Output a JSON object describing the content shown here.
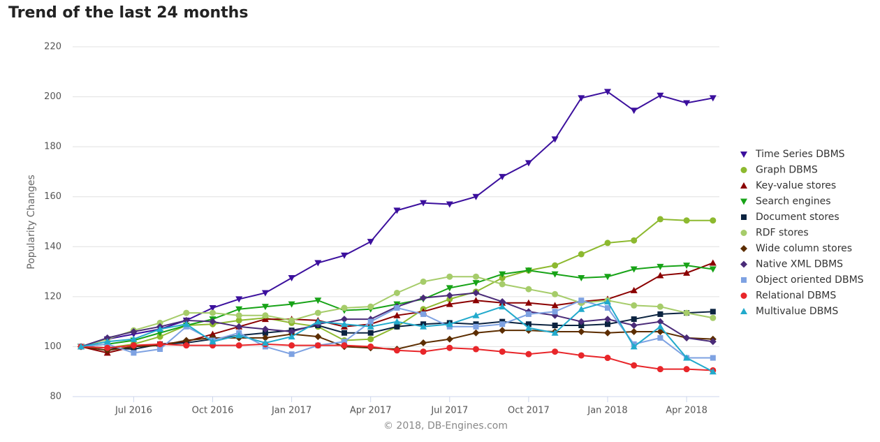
{
  "chart_data": {
    "type": "line",
    "title": "Trend of the last 24 months",
    "y_label": "Popularity Changes",
    "credits": "© 2018, DB-Engines.com",
    "categories": [
      null,
      null,
      "Jul 2016",
      null,
      null,
      "Oct 2016",
      null,
      null,
      "Jan 2017",
      null,
      null,
      "Apr 2017",
      null,
      null,
      "Jul 2017",
      null,
      null,
      "Oct 2017",
      null,
      null,
      "Jan 2018",
      null,
      null,
      "Apr 2018",
      null
    ],
    "ylim": [
      80,
      220
    ],
    "yticks": [
      80,
      100,
      120,
      140,
      160,
      180,
      200,
      220
    ],
    "grid": true,
    "legend": "right",
    "series": [
      {
        "name": "Time Series DBMS",
        "color": "#3b0f9d",
        "marker": "triangle-down",
        "values": [
          100,
          103,
          105,
          107,
          110.5,
          115.5,
          119,
          121.5,
          127.5,
          133.5,
          136.5,
          142,
          154.5,
          157.5,
          157,
          160,
          168,
          173.5,
          183,
          199.5,
          202,
          194.5,
          200.5,
          197.5,
          199.5
        ]
      },
      {
        "name": "Graph DBMS",
        "color": "#8db92f",
        "marker": "circle",
        "values": [
          100,
          99.5,
          101,
          104,
          108.5,
          109,
          110.5,
          111.5,
          109.5,
          108,
          102.5,
          103,
          108,
          115,
          119,
          122,
          127.5,
          130.5,
          132.5,
          137,
          141.5,
          142.5,
          151,
          150.5,
          150.5
        ]
      },
      {
        "name": "Key-value stores",
        "color": "#8b0000",
        "marker": "triangle",
        "values": [
          100,
          97.5,
          100,
          101,
          102,
          105,
          108,
          111,
          111,
          110.5,
          108,
          109,
          112.5,
          114,
          117,
          118.5,
          117.5,
          117.5,
          116.5,
          118,
          119,
          122.5,
          128.5,
          129.5,
          133.5
        ]
      },
      {
        "name": "Search engines",
        "color": "#17a317",
        "marker": "triangle-down",
        "values": [
          100,
          101,
          102.5,
          105.5,
          108.5,
          111,
          115,
          116,
          117,
          118.5,
          114.5,
          115,
          117,
          119,
          123.5,
          125.5,
          129,
          130.5,
          129,
          127.5,
          128,
          131,
          132,
          132.5,
          131
        ]
      },
      {
        "name": "Document stores",
        "color": "#0b2340",
        "marker": "square",
        "values": [
          100,
          99.5,
          99,
          101,
          101.5,
          103,
          104.5,
          105.5,
          106.5,
          108.5,
          105.5,
          105.5,
          108,
          109,
          109.5,
          109,
          110,
          109,
          108.5,
          108.5,
          109,
          111,
          113,
          113.5,
          114
        ]
      },
      {
        "name": "RDF stores",
        "color": "#a6cc6a",
        "marker": "circle",
        "values": [
          100,
          103,
          106.5,
          109.5,
          113.5,
          113.5,
          112.5,
          112.5,
          110.5,
          113.5,
          115.5,
          116,
          121.5,
          126,
          128,
          128,
          125,
          123,
          121,
          117.5,
          118.5,
          116.5,
          116,
          113.5,
          111.5
        ]
      },
      {
        "name": "Wide column stores",
        "color": "#5c2d00",
        "marker": "diamond",
        "values": [
          100,
          98.5,
          100,
          100.5,
          102.5,
          103.5,
          103.5,
          103.5,
          105,
          104,
          100,
          99.5,
          99,
          101.5,
          103,
          105.5,
          106.5,
          106.5,
          106,
          106,
          105.5,
          106,
          106,
          103.5,
          103
        ]
      },
      {
        "name": "Native XML DBMS",
        "color": "#4a2b78",
        "marker": "diamond",
        "values": [
          100,
          103.5,
          106,
          108,
          110.5,
          110,
          108,
          107,
          106,
          109,
          111,
          111,
          116,
          119.5,
          120.5,
          121.5,
          118,
          114,
          112.5,
          110,
          111,
          108.5,
          110,
          103.5,
          102
        ]
      },
      {
        "name": "Object oriented DBMS",
        "color": "#7ea2e2",
        "marker": "square",
        "values": [
          100,
          101,
          97.5,
          99,
          108,
          102.5,
          105.5,
          100,
          97,
          100.5,
          102,
          110,
          115.5,
          113,
          108,
          108,
          109,
          113,
          114,
          118.5,
          115.5,
          101,
          103.5,
          95.5,
          95.5
        ]
      },
      {
        "name": "Relational DBMS",
        "color": "#e8262a",
        "marker": "circle",
        "values": [
          100,
          99.5,
          100.5,
          101,
          100.5,
          100.5,
          100.5,
          101,
          100.5,
          100.5,
          100.5,
          100,
          98.5,
          98,
          99.5,
          99,
          98,
          97,
          98,
          96.5,
          95.5,
          92.5,
          91,
          91,
          90.5
        ]
      },
      {
        "name": "Multivalue DBMS",
        "color": "#22aacc",
        "marker": "triangle",
        "values": [
          100,
          102,
          103,
          107,
          109,
          102,
          104.5,
          101.5,
          104,
          110,
          109,
          108,
          110,
          108,
          109,
          112.5,
          116,
          107.5,
          105.5,
          115,
          118,
          100,
          108,
          95.5,
          90
        ]
      }
    ]
  }
}
